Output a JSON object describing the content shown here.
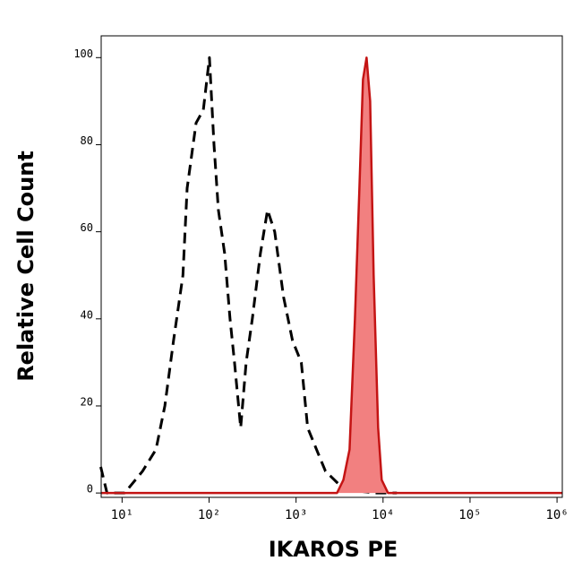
{
  "chart_data": {
    "type": "histogram-overlay",
    "xlabel": "IKAROS PE",
    "ylabel": "Relative Cell Count",
    "xscale": "log",
    "xlim": [
      5.75,
      1150000
    ],
    "ylim": [
      -1,
      105
    ],
    "xticks": [
      {
        "value": 10,
        "label": "10¹"
      },
      {
        "value": 100,
        "label": "10²"
      },
      {
        "value": 1000,
        "label": "10³"
      },
      {
        "value": 10000,
        "label": "10⁴"
      },
      {
        "value": 100000,
        "label": "10⁵"
      },
      {
        "value": 1000000,
        "label": "10⁶"
      }
    ],
    "yticks": [
      0,
      20,
      40,
      60,
      80,
      100
    ],
    "series": [
      {
        "color": "#000000",
        "dashed": true,
        "filled": false,
        "x": [
          5.68,
          6.7,
          10.7,
          17.2,
          24.5,
          31,
          39,
          50,
          56,
          71,
          86,
          101,
          114,
          128,
          151,
          174,
          196,
          231,
          267,
          314,
          389,
          470,
          568,
          718,
          910,
          1150,
          1360,
          1720,
          2180,
          2760,
          3500,
          4980,
          8000,
          14400
        ],
        "values": [
          6,
          0,
          0,
          5,
          10,
          20,
          35,
          50,
          70,
          85,
          88,
          100,
          80,
          65,
          55,
          40,
          30,
          15,
          30,
          40,
          55,
          65,
          60,
          45,
          35,
          30,
          15,
          10,
          5,
          3,
          1,
          0.5,
          0,
          0
        ]
      },
      {
        "color": "#c41414",
        "fill_color": "#f28080",
        "dashed": false,
        "filled": true,
        "x": [
          5.75,
          2960,
          3500,
          4120,
          4750,
          5350,
          5880,
          6460,
          7100,
          7800,
          8780,
          9660,
          11400,
          1150000
        ],
        "values": [
          0,
          0,
          3,
          10,
          40,
          70,
          95,
          100,
          90,
          50,
          15,
          3,
          0,
          0
        ]
      }
    ]
  }
}
